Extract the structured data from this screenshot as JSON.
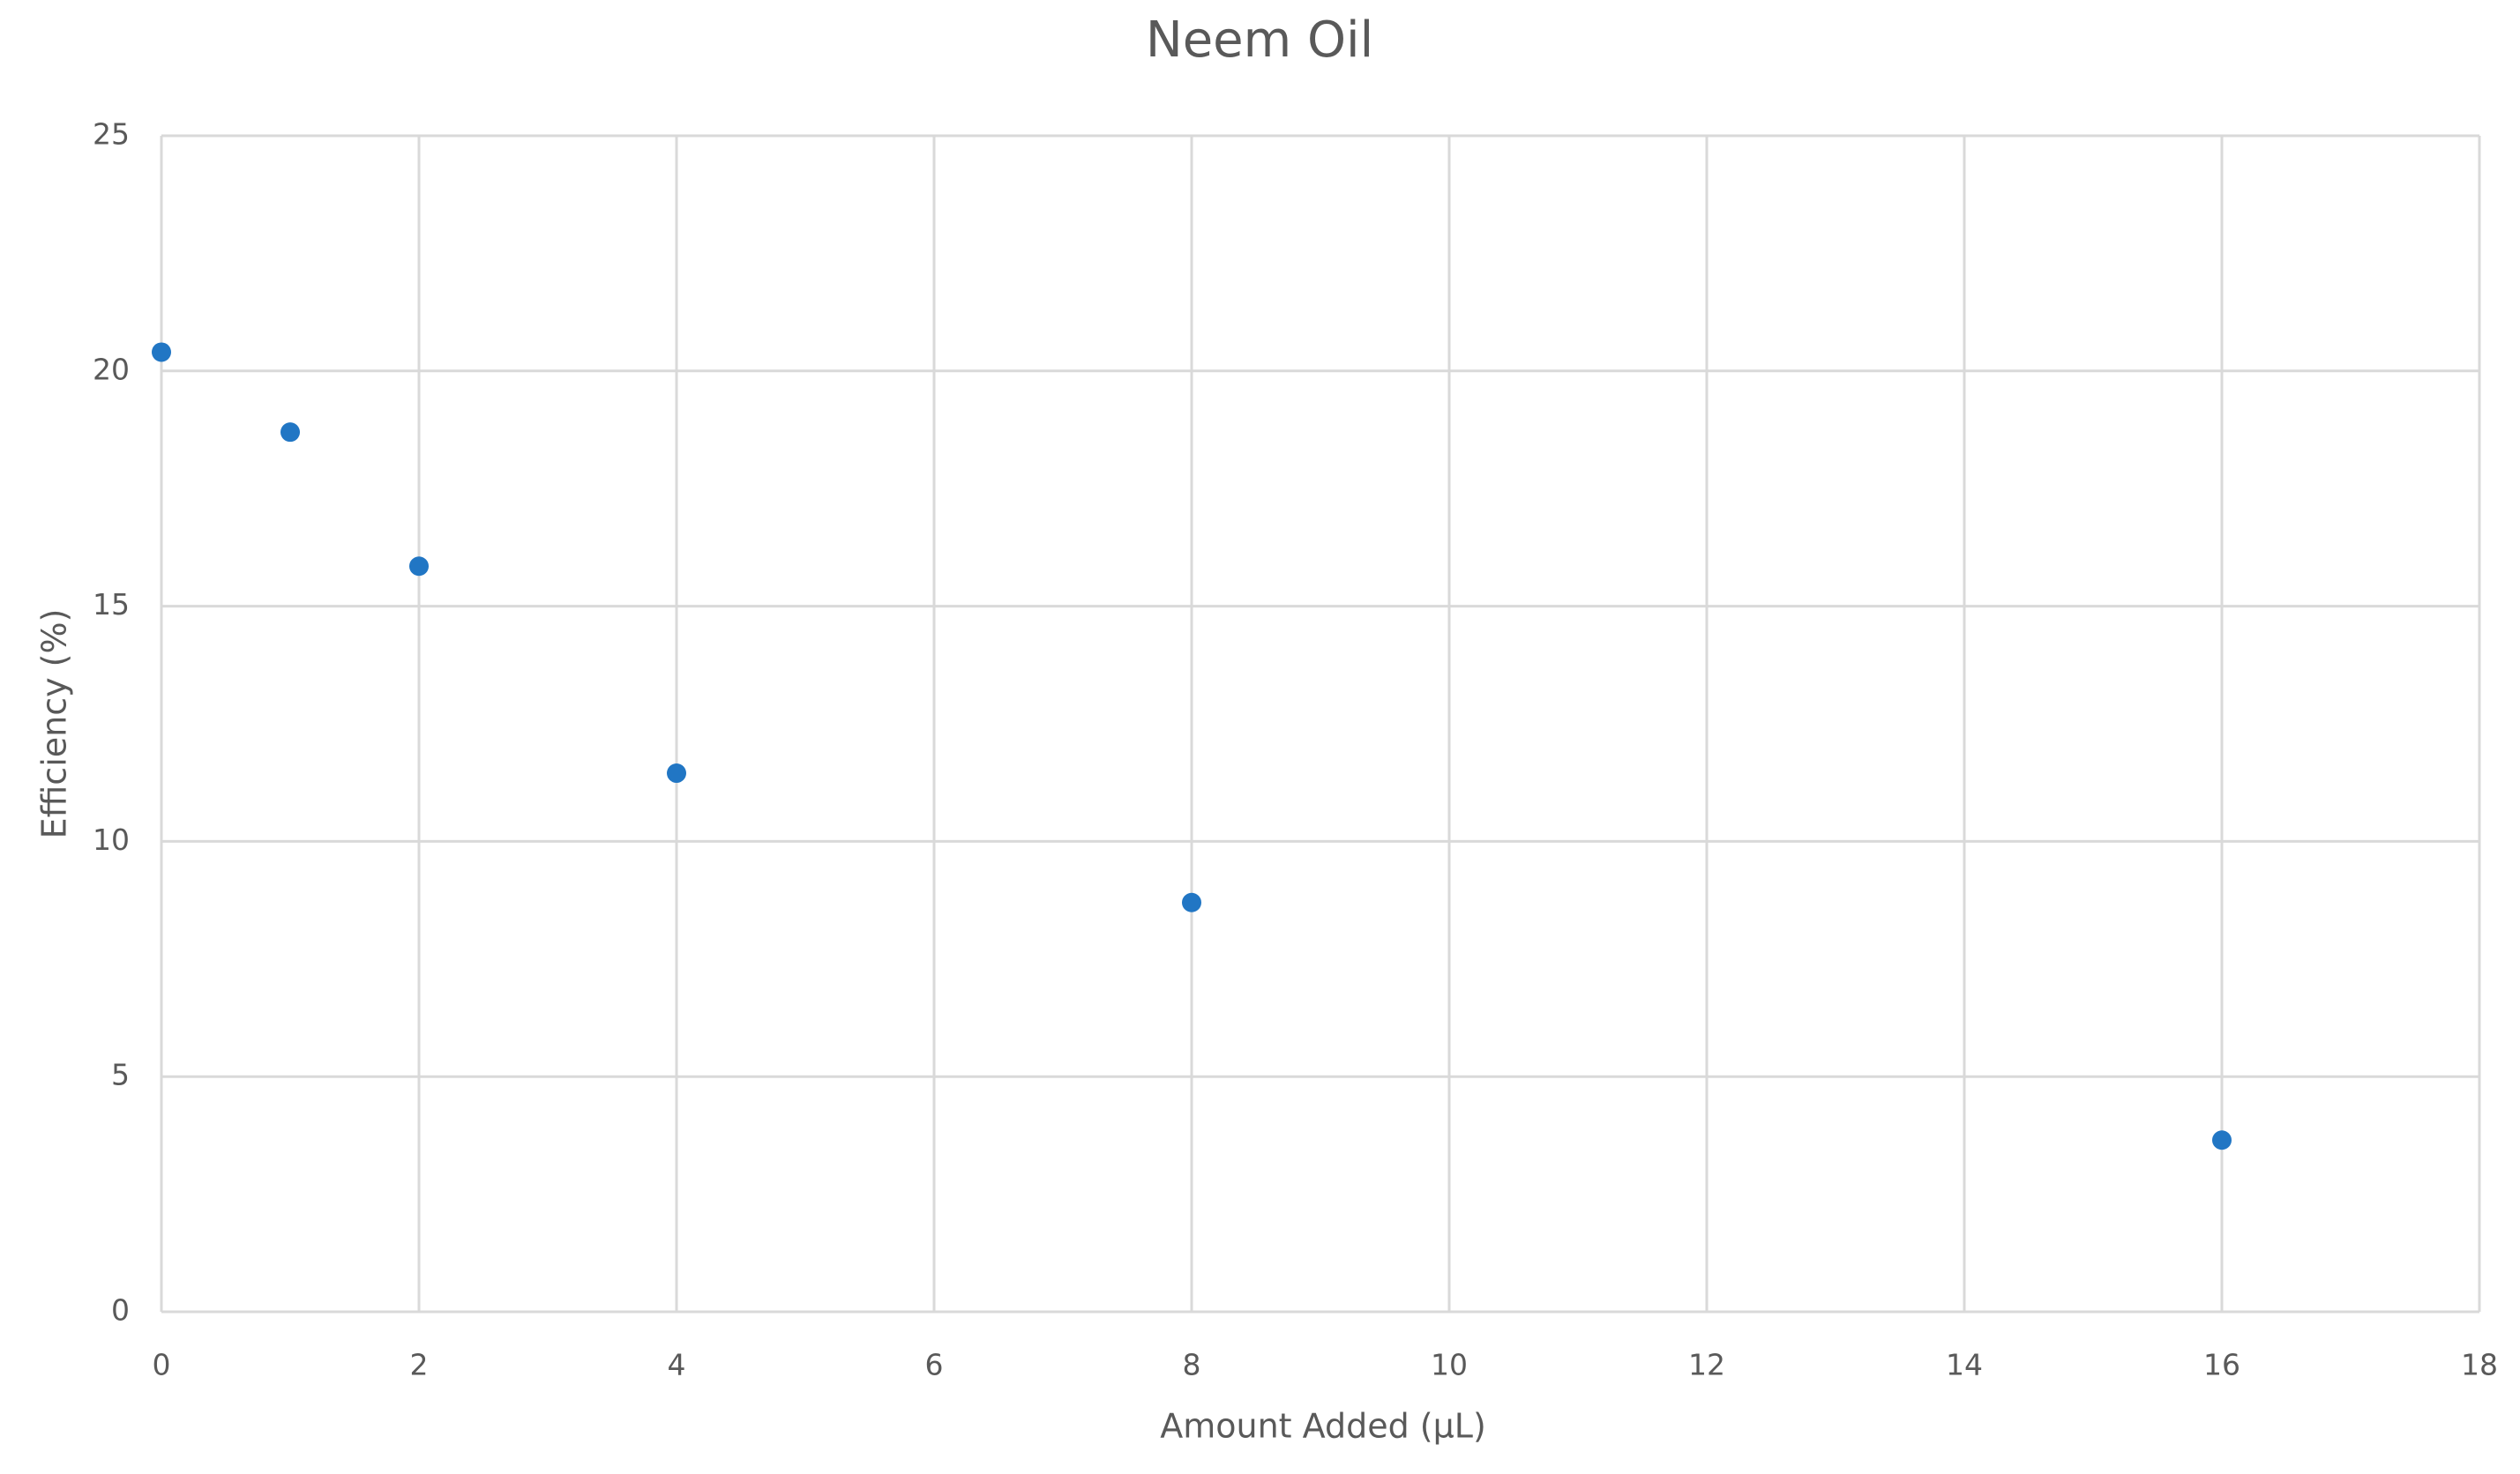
{
  "chart_data": {
    "type": "scatter",
    "title": "Neem Oil",
    "x_label": "Amount Added (µL)",
    "y_label": "Efficiency (%)",
    "series": [
      {
        "color": "#2176c4",
        "x": [
          0,
          1,
          2,
          4,
          8,
          16
        ],
        "values": [
          20.4,
          18.7,
          15.85,
          11.45,
          8.7,
          3.65
        ]
      }
    ],
    "xlim": [
      0,
      18
    ],
    "xticks": [
      0,
      2,
      4,
      6,
      8,
      10,
      12,
      14,
      16,
      18
    ],
    "ylim": [
      0,
      25
    ],
    "yticks": [
      0,
      5,
      10,
      15,
      20,
      25
    ],
    "grid": true
  }
}
